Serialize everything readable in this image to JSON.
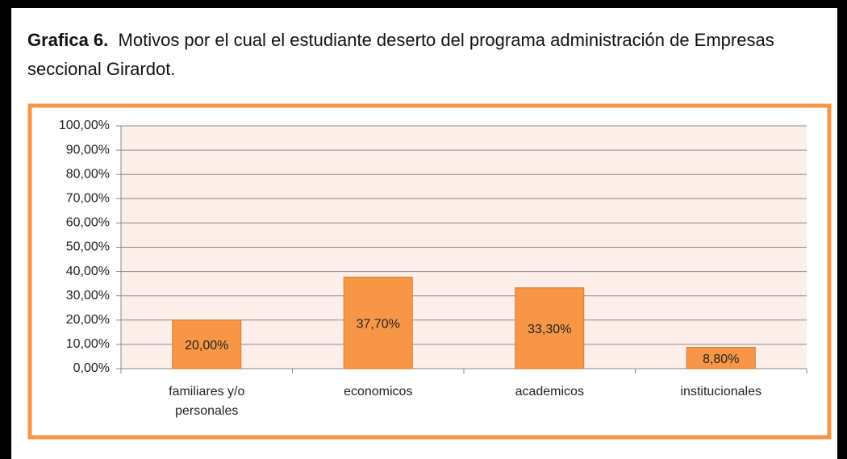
{
  "chart_data": {
    "type": "bar",
    "title_label": "Grafica 6.",
    "title": "Motivos por el cual el estudiante deserto del programa administración de Empresas seccional Girardot.",
    "categories": [
      "familiares y/o personales",
      "economicos",
      "academicos",
      "institucionales"
    ],
    "values": [
      20,
      37.7,
      33.3,
      8.8
    ],
    "value_labels": [
      "20,00%",
      "37,70%",
      "33,30%",
      "8,80%"
    ],
    "color": "#f79646",
    "ylim": [
      0,
      100
    ],
    "yticks": [
      {
        "value": 0,
        "label": "0,00%"
      },
      {
        "value": 10,
        "label": "10,00%"
      },
      {
        "value": 20,
        "label": "20,00%"
      },
      {
        "value": 30,
        "label": "30,00%"
      },
      {
        "value": 40,
        "label": "40,00%"
      },
      {
        "value": 50,
        "label": "50,00%"
      },
      {
        "value": 60,
        "label": "60,00%"
      },
      {
        "value": 70,
        "label": "70,00%"
      },
      {
        "value": 80,
        "label": "80,00%"
      },
      {
        "value": 90,
        "label": "90,00%"
      },
      {
        "value": 100,
        "label": "100,00%"
      }
    ],
    "grid": true
  }
}
